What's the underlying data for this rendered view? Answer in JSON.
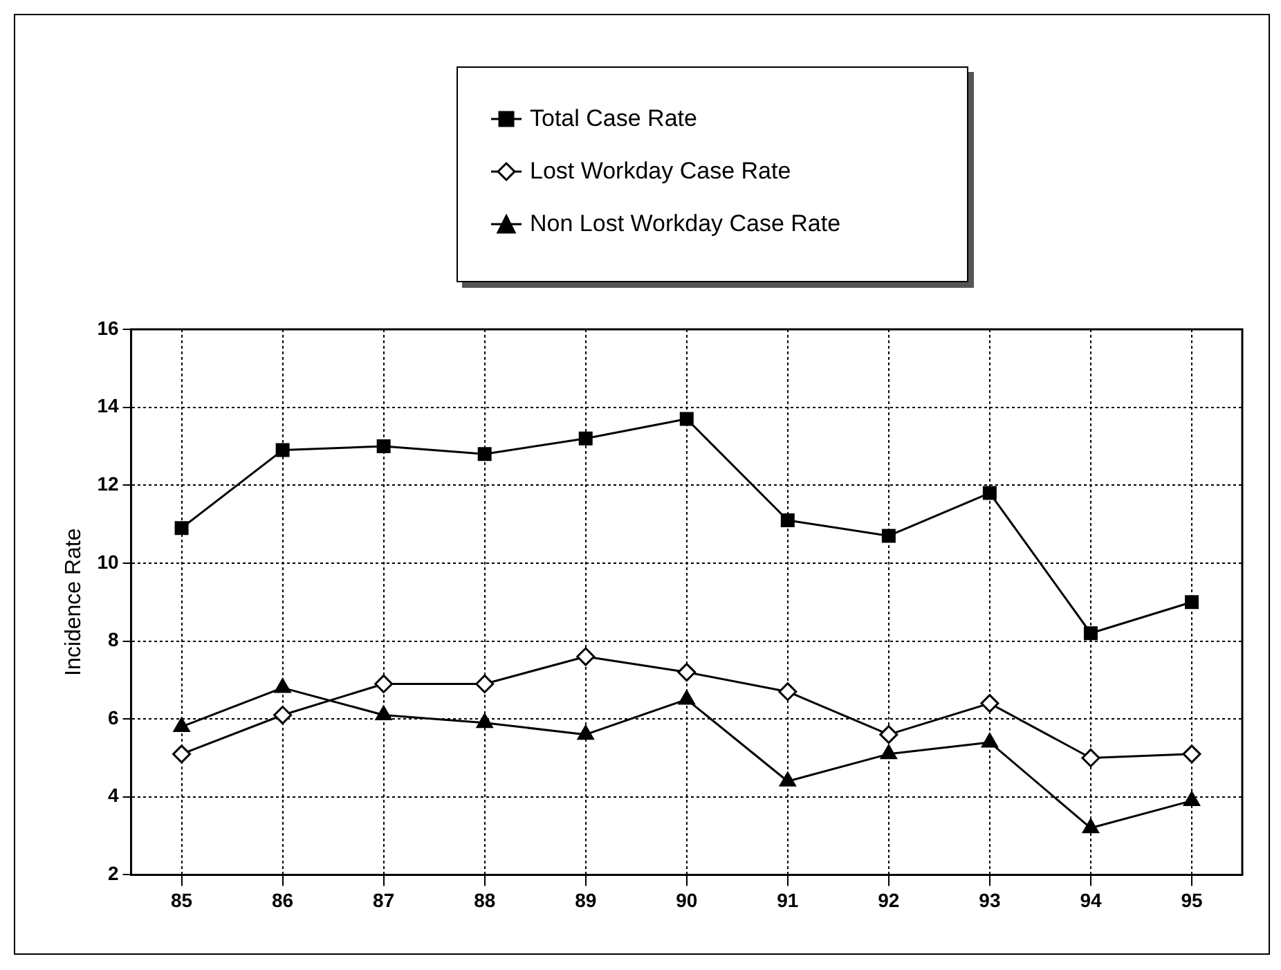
{
  "chart_data": {
    "type": "line",
    "ylabel": "Incidence Rate",
    "categories": [
      "85",
      "86",
      "87",
      "88",
      "89",
      "90",
      "91",
      "92",
      "93",
      "94",
      "95"
    ],
    "series": [
      {
        "name": "Total Case Rate",
        "color": "#000000",
        "marker": "square",
        "values": [
          10.9,
          12.9,
          13.0,
          12.8,
          13.2,
          13.7,
          11.1,
          10.7,
          11.8,
          8.2,
          9.0
        ]
      },
      {
        "name": "Lost Workday Case Rate",
        "color": "#000000",
        "marker": "diamond",
        "values": [
          5.1,
          6.1,
          6.9,
          6.9,
          7.6,
          7.2,
          6.7,
          5.6,
          6.4,
          5.0,
          5.1
        ]
      },
      {
        "name": "Non Lost Workday Case Rate",
        "color": "#000000",
        "marker": "triangle",
        "values": [
          5.8,
          6.8,
          6.1,
          5.9,
          5.6,
          6.5,
          4.4,
          5.1,
          5.4,
          3.2,
          3.9
        ]
      }
    ],
    "ylim": [
      2,
      16
    ],
    "yticks": [
      2,
      4,
      6,
      8,
      10,
      12,
      14,
      16
    ],
    "grid": true,
    "legend": "top",
    "line_style": "solid"
  }
}
